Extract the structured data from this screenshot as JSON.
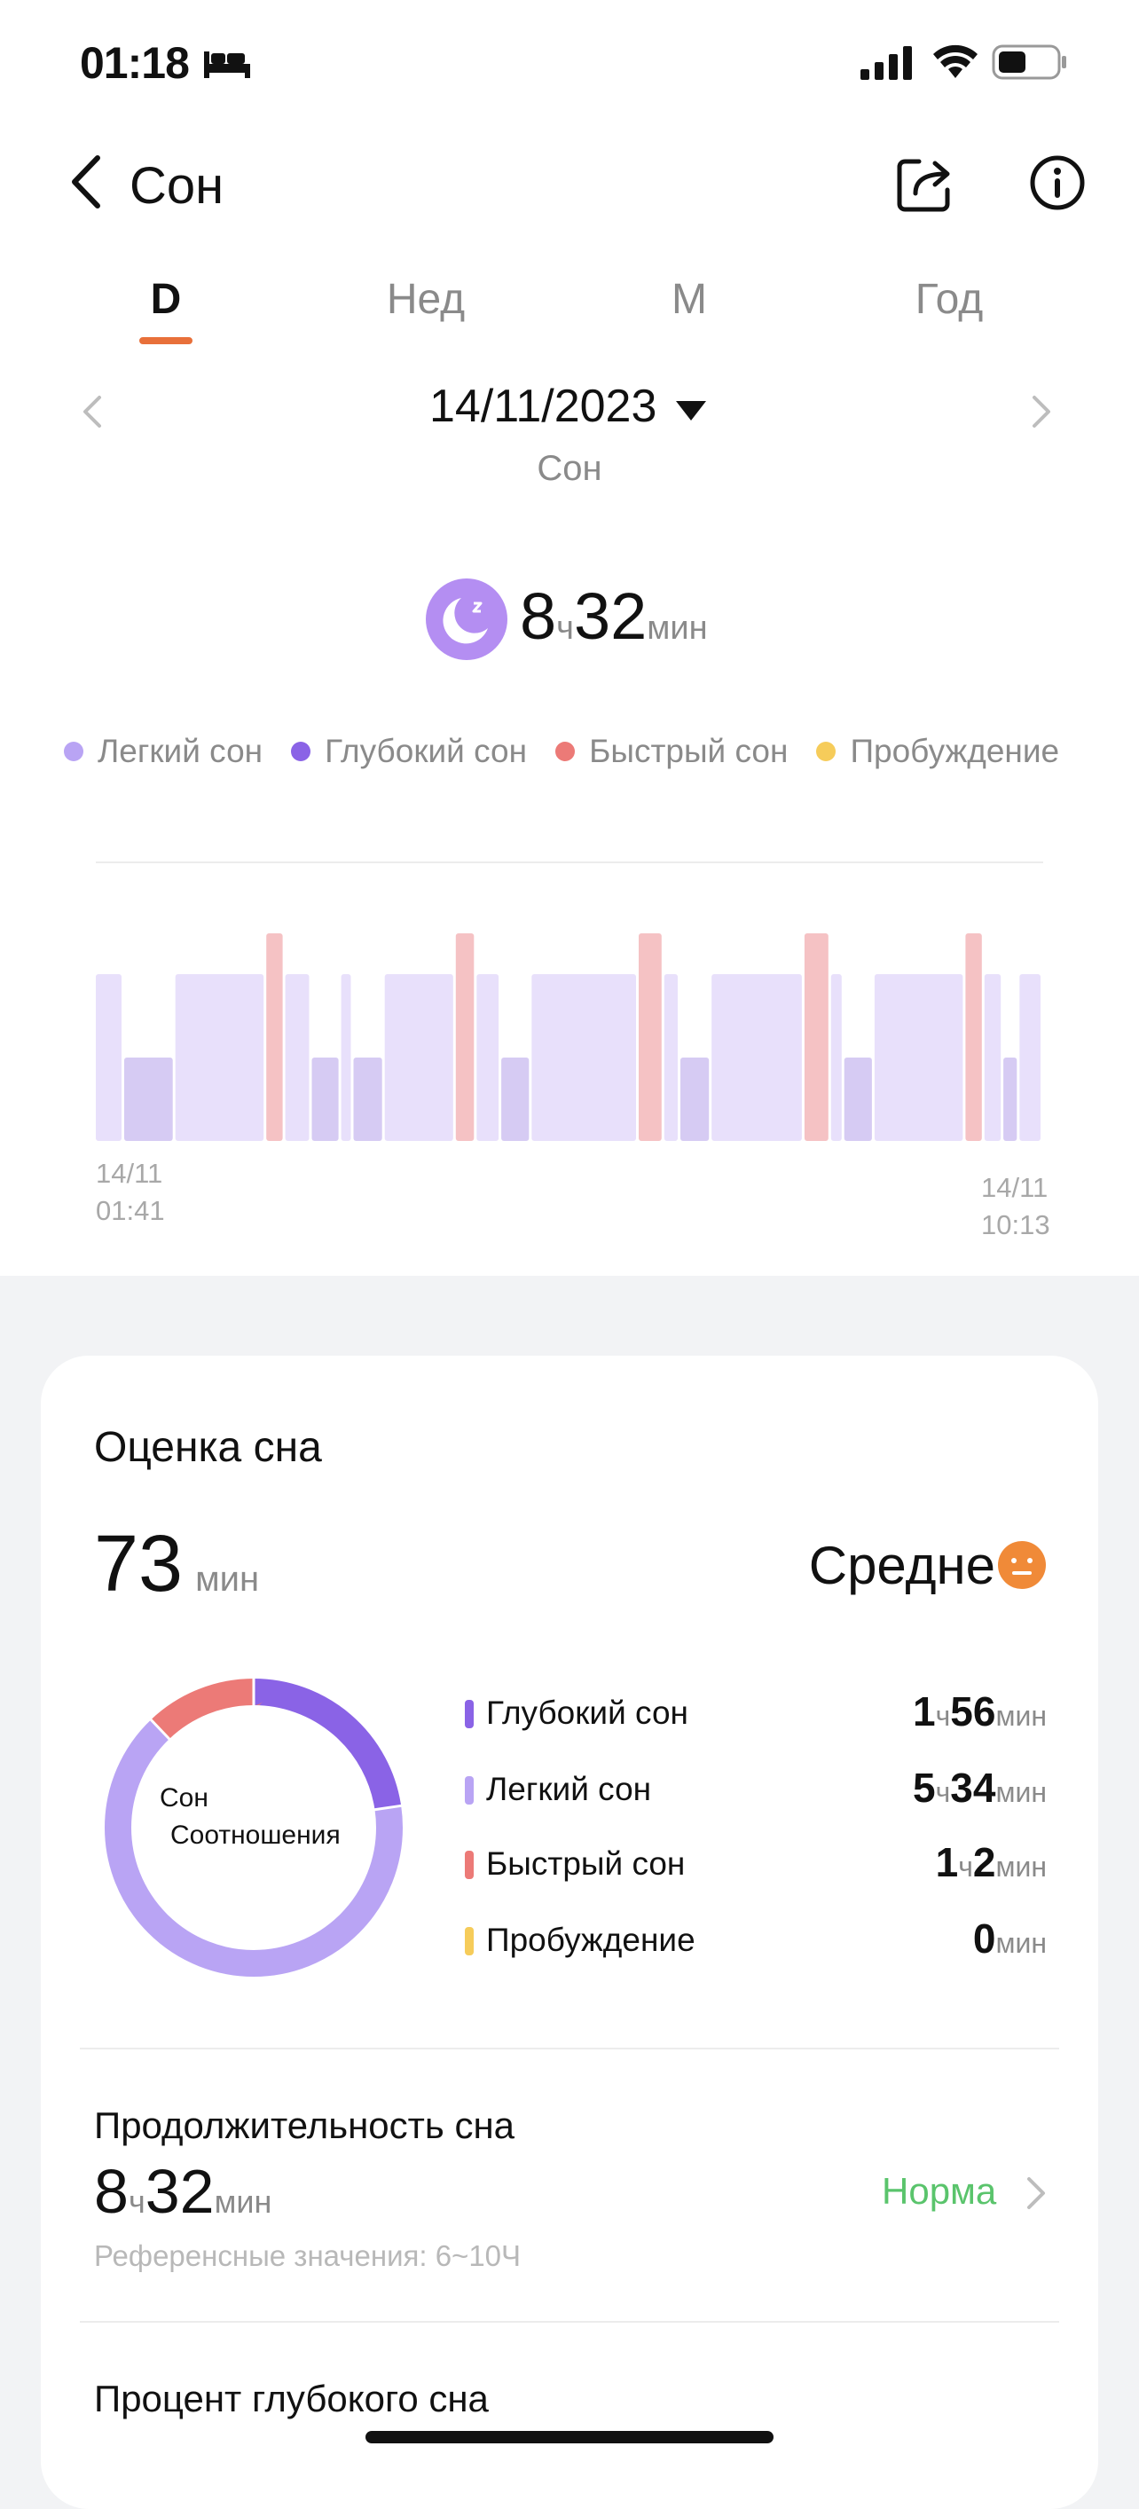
{
  "status_bar": {
    "time": "01:18"
  },
  "header": {
    "title": "Сон"
  },
  "tabs": [
    {
      "label": "D",
      "active": true
    },
    {
      "label": "Нед",
      "active": false
    },
    {
      "label": "М",
      "active": false
    },
    {
      "label": "Год",
      "active": false
    }
  ],
  "date_nav": {
    "date": "14/11/2023",
    "subtitle": "Сон"
  },
  "total": {
    "hours": "8",
    "hours_unit": "ч",
    "minutes": "32",
    "minutes_unit": "мин"
  },
  "legend": [
    {
      "label": "Легкий сон",
      "color": "#b9a4f4"
    },
    {
      "label": "Глубокий сон",
      "color": "#8a63e6"
    },
    {
      "label": "Быстрый сон",
      "color": "#ec7a77"
    },
    {
      "label": "Пробуждение",
      "color": "#f6cc5a"
    }
  ],
  "chart": {
    "start_label": [
      "14/11",
      "01:41"
    ],
    "end_label": [
      "14/11",
      "10:13"
    ]
  },
  "chart_data": {
    "type": "bar",
    "title": "",
    "x_start": "14/11 01:41",
    "x_end": "14/11 10:13",
    "levels": [
      "Глубокий сон",
      "Легкий сон",
      "Быстрый сон"
    ],
    "segments": [
      {
        "stage": "Легкий сон",
        "start": 0.0,
        "end": 0.03
      },
      {
        "stage": "Глубокий сон",
        "start": 0.03,
        "end": 0.084
      },
      {
        "stage": "Легкий сон",
        "start": 0.084,
        "end": 0.18
      },
      {
        "stage": "Быстрый сон",
        "start": 0.18,
        "end": 0.2
      },
      {
        "stage": "Легкий сон",
        "start": 0.2,
        "end": 0.228
      },
      {
        "stage": "Глубокий сон",
        "start": 0.228,
        "end": 0.259
      },
      {
        "stage": "Легкий сон",
        "start": 0.259,
        "end": 0.272
      },
      {
        "stage": "Глубокий сон",
        "start": 0.272,
        "end": 0.305
      },
      {
        "stage": "Легкий сон",
        "start": 0.305,
        "end": 0.38
      },
      {
        "stage": "Быстрый сон",
        "start": 0.38,
        "end": 0.402
      },
      {
        "stage": "Легкий сон",
        "start": 0.402,
        "end": 0.428
      },
      {
        "stage": "Глубокий сон",
        "start": 0.428,
        "end": 0.46
      },
      {
        "stage": "Легкий сон",
        "start": 0.46,
        "end": 0.573
      },
      {
        "stage": "Быстрый сон",
        "start": 0.573,
        "end": 0.6
      },
      {
        "stage": "Легкий сон",
        "start": 0.6,
        "end": 0.617
      },
      {
        "stage": "Глубокий сон",
        "start": 0.617,
        "end": 0.65
      },
      {
        "stage": "Легкий сон",
        "start": 0.65,
        "end": 0.748
      },
      {
        "stage": "Быстрый сон",
        "start": 0.748,
        "end": 0.776
      },
      {
        "stage": "Легкий сон",
        "start": 0.776,
        "end": 0.79
      },
      {
        "stage": "Глубокий сон",
        "start": 0.79,
        "end": 0.822
      },
      {
        "stage": "Легкий сон",
        "start": 0.822,
        "end": 0.918
      },
      {
        "stage": "Быстрый сон",
        "start": 0.918,
        "end": 0.938
      },
      {
        "stage": "Легкий сон",
        "start": 0.938,
        "end": 0.958
      },
      {
        "stage": "Глубокий сон",
        "start": 0.958,
        "end": 0.975
      },
      {
        "stage": "Легкий сон",
        "start": 0.975,
        "end": 1.0
      }
    ]
  },
  "score_card": {
    "title": "Оценка сна",
    "score": "73",
    "score_unit": "мин",
    "quality": "Средне",
    "donut_label_1": "Сон",
    "donut_label_2": "Соотношения",
    "donut": [
      {
        "stage": "Глубокий сон",
        "minutes": 116,
        "color": "#8a63e6"
      },
      {
        "stage": "Легкий сон",
        "minutes": 334,
        "color": "#b9a4f4"
      },
      {
        "stage": "Быстрый сон",
        "minutes": 62,
        "color": "#ec7a77"
      },
      {
        "stage": "Пробуждение",
        "minutes": 0,
        "color": "#f6cc5a"
      }
    ],
    "stages": [
      {
        "name": "Глубокий сон",
        "color": "#8a63e6",
        "h": "1",
        "h_unit": "ч",
        "m": "56",
        "m_unit": "мин"
      },
      {
        "name": "Легкий сон",
        "color": "#b9a4f4",
        "h": "5",
        "h_unit": "ч",
        "m": "34",
        "m_unit": "мин"
      },
      {
        "name": "Быстрый сон",
        "color": "#ec7a77",
        "h": "1",
        "h_unit": "ч",
        "m": "2",
        "m_unit": "мин"
      },
      {
        "name": "Пробуждение",
        "color": "#f6cc5a",
        "h": "",
        "h_unit": "",
        "m": "0",
        "m_unit": "мин"
      }
    ]
  },
  "duration": {
    "title": "Продолжительность сна",
    "hours": "8",
    "hours_unit": "ч",
    "minutes": "32",
    "minutes_unit": "мин",
    "status": "Норма",
    "reference": "Референсные значения: 6~10Ч"
  },
  "deep_percent": {
    "title": "Процент глубокого сна"
  }
}
